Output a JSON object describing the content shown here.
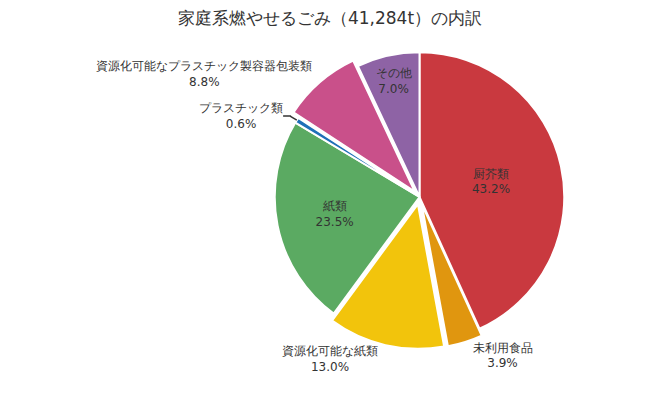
{
  "chart_data": {
    "type": "pie",
    "title": "家庭系燃やせるごみ（41,284t）の内訳",
    "categories": [
      "厨芥類",
      "未利用食品",
      "資源化可能な紙類",
      "紙類",
      "プラスチック類",
      "資源化可能なプラスチック製容器包装類",
      "その他"
    ],
    "values": [
      43.2,
      3.9,
      13.0,
      23.5,
      0.6,
      8.8,
      7.0
    ],
    "value_labels": [
      "43.2%",
      "3.9%",
      "13.0%",
      "23.5%",
      "0.6%",
      "8.8%",
      "7.0%"
    ],
    "colors": [
      "#c9393f",
      "#e0960f",
      "#f2c40c",
      "#5baa62",
      "#1f6fb8",
      "#c9508a",
      "#8e63a5"
    ],
    "data_labels": true
  }
}
